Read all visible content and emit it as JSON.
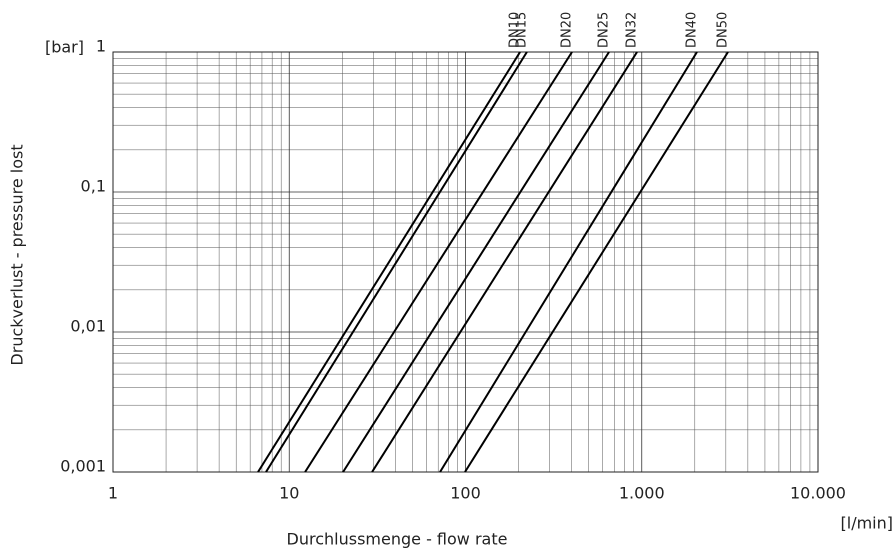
{
  "chart_data": {
    "type": "line",
    "x_label": "Durchlussmenge - flow rate",
    "x_unit": "[l/min]",
    "y_label": "Druckverlust - pressure lost",
    "y_unit": "[bar]",
    "xlog": true,
    "ylog": true,
    "grid": true,
    "minor_grid": true,
    "xlim": [
      1,
      10000
    ],
    "xticks": [
      1,
      10,
      100,
      {
        "value": 1000,
        "label": "1.000"
      },
      {
        "value": 10000,
        "label": "10.000"
      }
    ],
    "ylim": [
      0.001,
      1
    ],
    "yticks": [
      {
        "value": 0.001,
        "label": "0,001"
      },
      {
        "value": 0.01,
        "label": "0,01"
      },
      {
        "value": 0.1,
        "label": "0,1"
      },
      1
    ],
    "series": [
      {
        "name": "DN10",
        "color": "#000000",
        "x": [
          6.65,
          204
        ],
        "values": [
          0.001,
          1
        ]
      },
      {
        "name": "DN15",
        "color": "#000000",
        "x": [
          7.38,
          223
        ],
        "values": [
          0.001,
          1
        ]
      },
      {
        "name": "DN20",
        "color": "#000000",
        "x": [
          12.3,
          402
        ],
        "values": [
          0.001,
          1
        ]
      },
      {
        "name": "DN25",
        "color": "#000000",
        "x": [
          20.2,
          652
        ],
        "values": [
          0.001,
          1
        ]
      },
      {
        "name": "DN32",
        "color": "#000000",
        "x": [
          29.5,
          940
        ],
        "values": [
          0.001,
          1
        ]
      },
      {
        "name": "DN40",
        "color": "#000000",
        "x": [
          71.7,
          2057
        ],
        "values": [
          0.001,
          1
        ]
      },
      {
        "name": "DN50",
        "color": "#000000",
        "x": [
          99.3,
          3085
        ],
        "values": [
          0.001,
          1
        ]
      }
    ]
  }
}
